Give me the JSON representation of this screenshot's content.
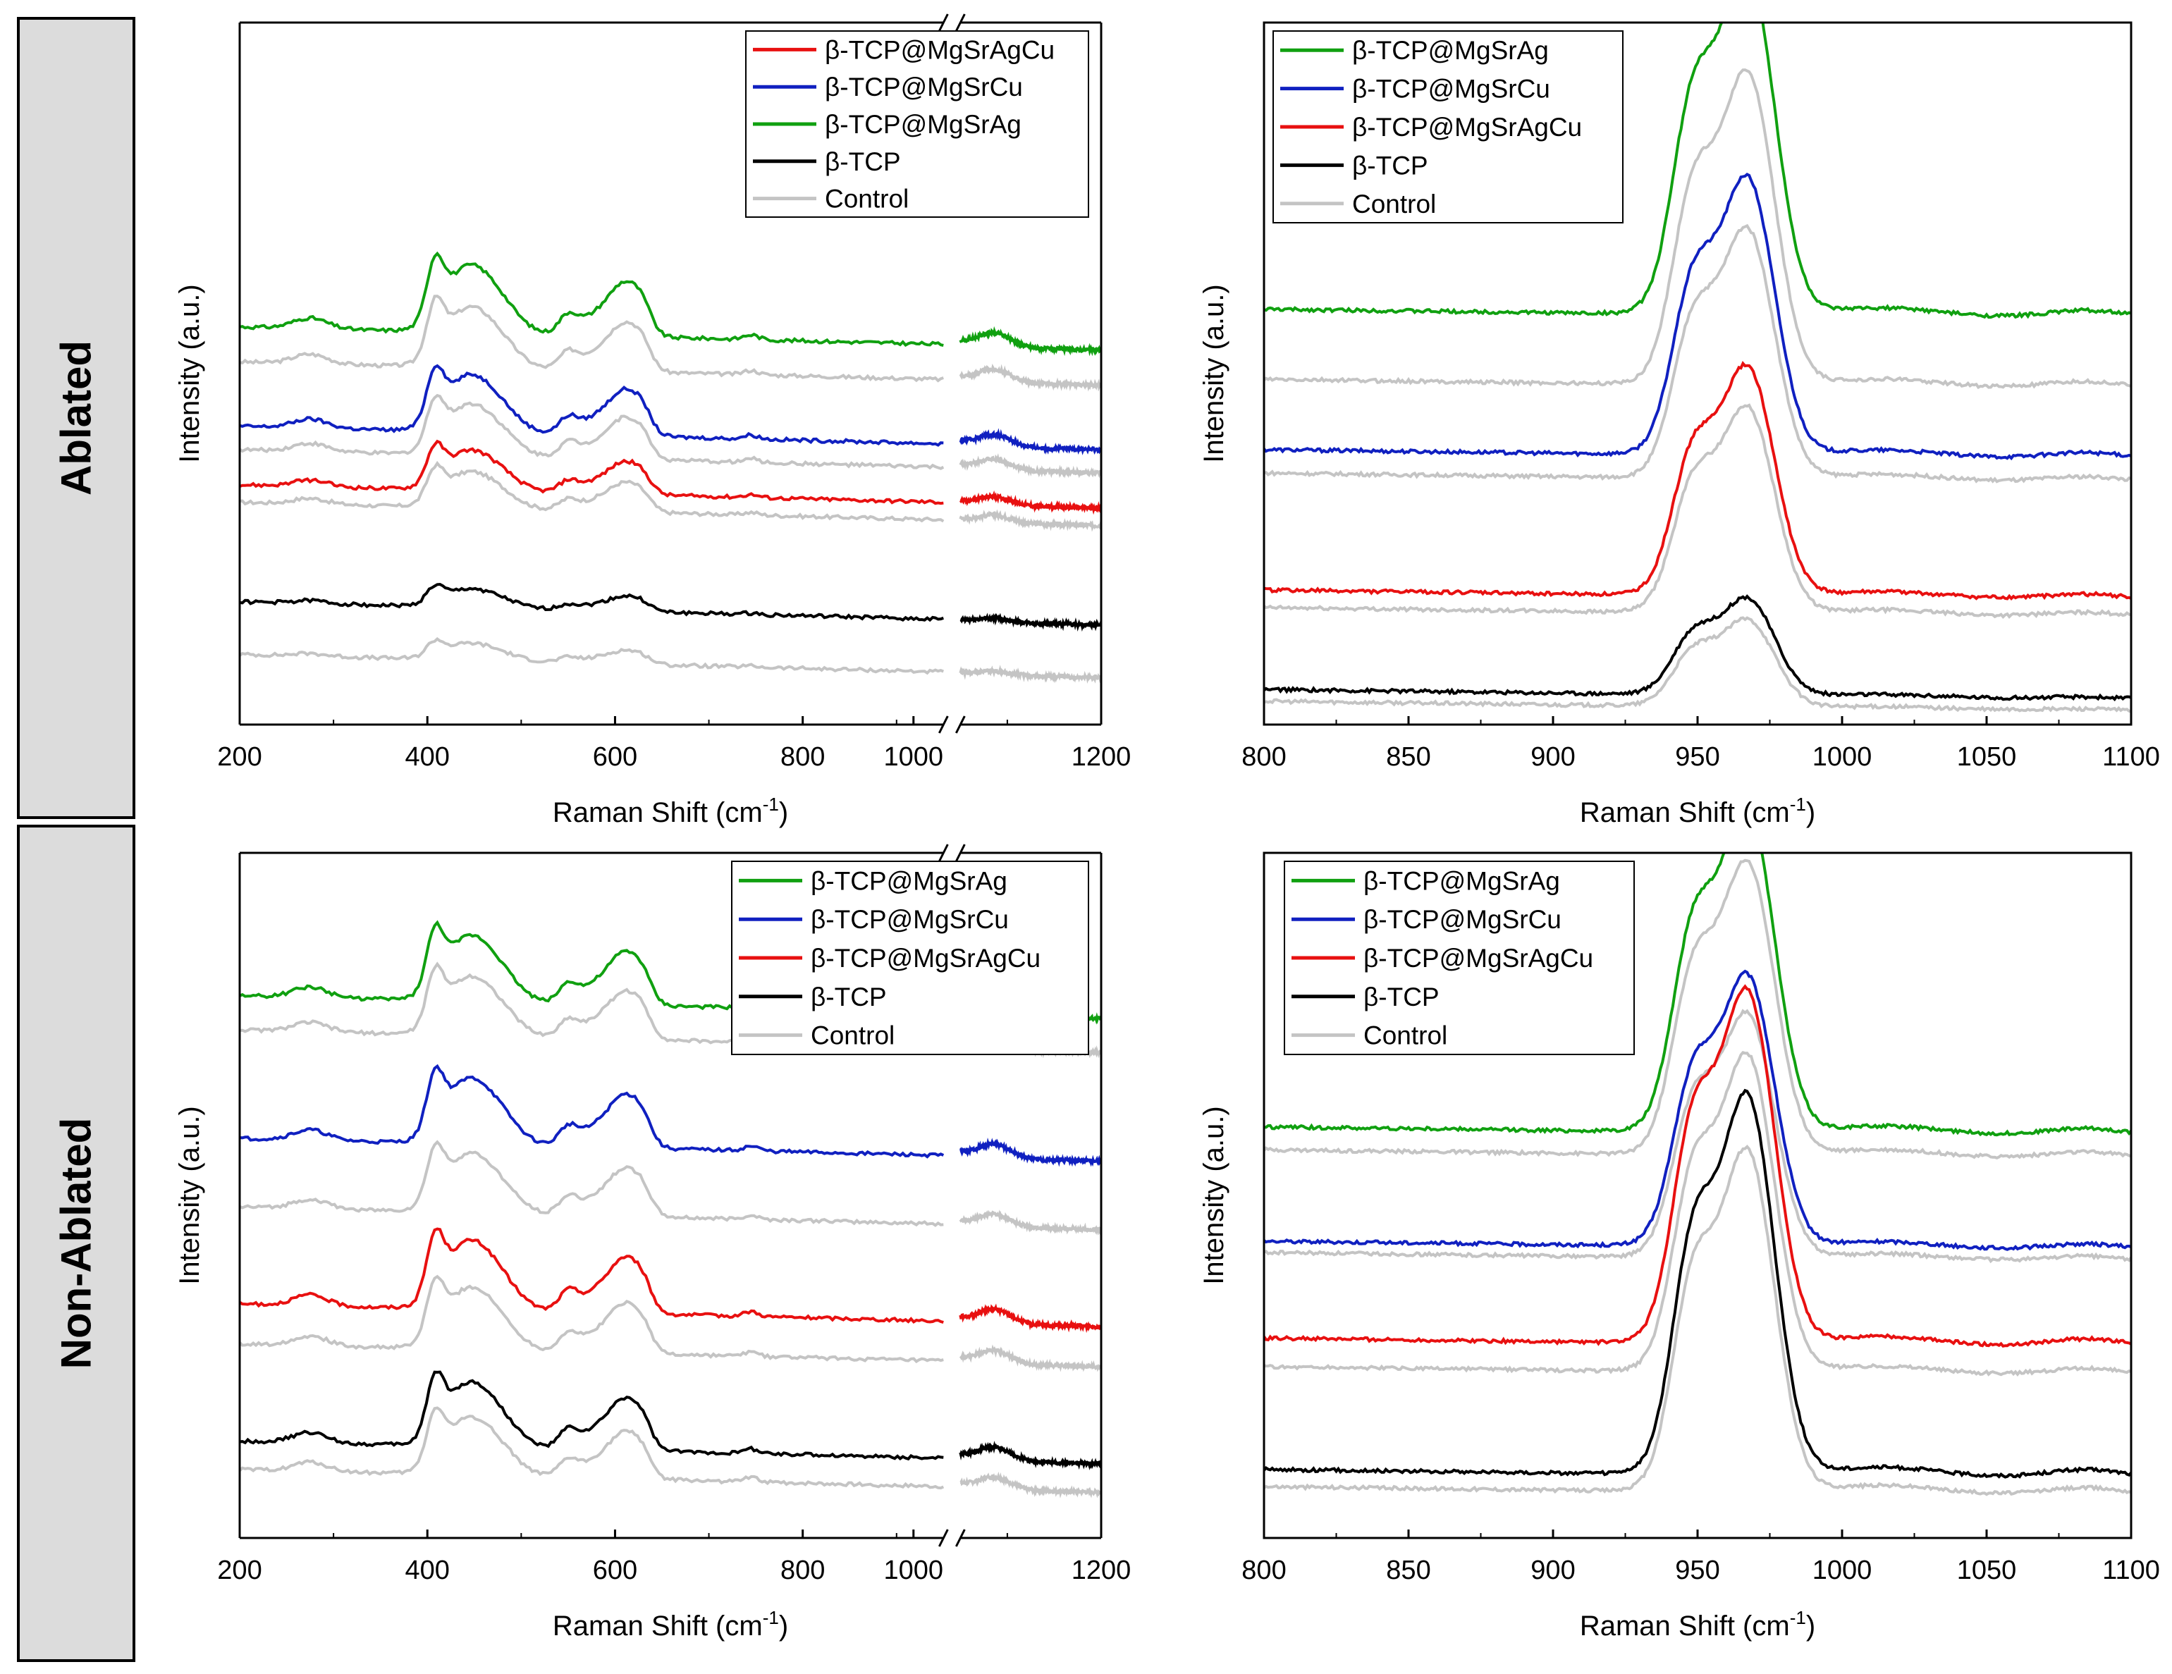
{
  "row_labels": [
    "Ablated",
    "Non-Ablated"
  ],
  "colors": {
    "green": "#10A010",
    "blue": "#1020C0",
    "red": "#E81010",
    "black": "#000000",
    "control": "#C4C4C4"
  },
  "chart_data": [
    {
      "id": "ablated-broad",
      "type": "line",
      "xlabel": "Raman Shift (cm",
      "xlabel_sup": "-1",
      "xlabel_end": ")",
      "ylabel": "Intensity (a.u.)",
      "xlim": [
        200,
        1200
      ],
      "axis_break": [
        950,
        1050
      ],
      "xticks": [
        200,
        400,
        600,
        800,
        1000,
        1200
      ],
      "legend": [
        "β-TCP@MgSrAgCu",
        "β-TCP@MgSrCu",
        "β-TCP@MgSrAg",
        "β-TCP",
        "Control"
      ],
      "series": [
        {
          "name": "β-TCP@MgSrAg",
          "color": "green",
          "base": 5.8,
          "scale": 1.0
        },
        {
          "name": "β-TCP@MgSrCu",
          "color": "blue",
          "base": 4.1,
          "scale": 0.85
        },
        {
          "name": "β-TCP@MgSrAgCu",
          "color": "red",
          "base": 3.1,
          "scale": 0.6
        },
        {
          "name": "β-TCP",
          "color": "black",
          "base": 1.1,
          "scale": 0.28
        },
        {
          "name": "Control",
          "color": "control",
          "offset_of": 0,
          "dy": -0.6
        },
        {
          "name": "Control",
          "color": "control",
          "offset_of": 1,
          "dy": -0.4
        },
        {
          "name": "Control",
          "color": "control",
          "offset_of": 2,
          "dy": -0.3
        },
        {
          "name": "Control",
          "color": "control",
          "offset_of": 3,
          "dy": -0.9
        }
      ]
    },
    {
      "id": "ablated-narrow",
      "type": "line",
      "xlabel": "Raman Shift (cm",
      "xlabel_sup": "-1",
      "xlabel_end": ")",
      "ylabel": "Intensity (a.u.)",
      "xlim": [
        800,
        1100
      ],
      "xticks": [
        800,
        850,
        900,
        950,
        1000,
        1050,
        1100
      ],
      "legend": [
        "β-TCP@MgSrAg",
        "β-TCP@MgSrCu",
        "β-TCP@MgSrAgCu",
        "β-TCP",
        "Control"
      ],
      "series": [
        {
          "name": "β-TCP@MgSrAg",
          "color": "green",
          "base": 6.1,
          "scale": 5.0
        },
        {
          "name": "β-TCP@MgSrCu",
          "color": "blue",
          "base": 3.7,
          "scale": 4.0
        },
        {
          "name": "β-TCP@MgSrAgCu",
          "color": "red",
          "base": 1.3,
          "scale": 3.3
        },
        {
          "name": "β-TCP",
          "color": "black",
          "base": -0.4,
          "scale": 1.4
        },
        {
          "name": "Control",
          "color": "control",
          "offset_of": 0,
          "dy": -1.2
        },
        {
          "name": "Control",
          "color": "control",
          "offset_of": 1,
          "dy": -0.4
        },
        {
          "name": "Control",
          "color": "control",
          "offset_of": 2,
          "dy": -0.3
        },
        {
          "name": "Control",
          "color": "control",
          "offset_of": 3,
          "dy": -0.2
        }
      ]
    },
    {
      "id": "nonablated-broad",
      "type": "line",
      "xlabel": "Raman Shift (cm",
      "xlabel_sup": "-1",
      "xlabel_end": ")",
      "ylabel": "Intensity (a.u.)",
      "xlim": [
        200,
        1200
      ],
      "axis_break": [
        950,
        1050
      ],
      "xticks": [
        200,
        400,
        600,
        800,
        1000,
        1200
      ],
      "legend": [
        "β-TCP@MgSrAg",
        "β-TCP@MgSrCu",
        "β-TCP@MgSrAgCu",
        "β-TCP",
        "Control"
      ],
      "series": [
        {
          "name": "β-TCP@MgSrAg",
          "color": "green",
          "base": 8.5,
          "scale": 1.0
        },
        {
          "name": "β-TCP@MgSrCu",
          "color": "blue",
          "base": 6.0,
          "scale": 1.0
        },
        {
          "name": "β-TCP@MgSrAgCu",
          "color": "red",
          "base": 3.1,
          "scale": 1.05
        },
        {
          "name": "β-TCP",
          "color": "black",
          "base": 0.7,
          "scale": 0.98
        },
        {
          "name": "Control",
          "color": "control",
          "offset_of": 0,
          "dy": -0.6
        },
        {
          "name": "Control",
          "color": "control",
          "offset_of": 1,
          "dy": -1.2
        },
        {
          "name": "Control",
          "color": "control",
          "offset_of": 2,
          "dy": -0.7
        },
        {
          "name": "Control",
          "color": "control",
          "offset_of": 3,
          "dy": -0.5
        }
      ]
    },
    {
      "id": "nonablated-narrow",
      "type": "line",
      "xlabel": "Raman Shift (cm",
      "xlabel_sup": "-1",
      "xlabel_end": ")",
      "ylabel": "Intensity (a.u.)",
      "xlim": [
        800,
        1100
      ],
      "xticks": [
        800,
        850,
        900,
        950,
        1000,
        1050,
        1100
      ],
      "legend": [
        "β-TCP@MgSrAg",
        "β-TCP@MgSrCu",
        "β-TCP@MgSrAgCu",
        "β-TCP",
        "Control"
      ],
      "series": [
        {
          "name": "β-TCP@MgSrAg",
          "color": "green",
          "base": 6.2,
          "scale": 4.8
        },
        {
          "name": "β-TCP@MgSrCu",
          "color": "blue",
          "base": 4.2,
          "scale": 4.0
        },
        {
          "name": "β-TCP@MgSrAgCu",
          "color": "red",
          "base": 2.5,
          "scale": 5.2
        },
        {
          "name": "β-TCP",
          "color": "black",
          "base": 0.2,
          "scale": 5.6
        },
        {
          "name": "Control",
          "color": "control",
          "offset_of": 0,
          "dy": -0.4
        },
        {
          "name": "Control",
          "color": "control",
          "offset_of": 1,
          "dy": -0.2
        },
        {
          "name": "Control",
          "color": "control",
          "offset_of": 2,
          "dy": -0.5
        },
        {
          "name": "Control",
          "color": "control",
          "offset_of": 3,
          "dy": -0.3
        }
      ]
    }
  ]
}
